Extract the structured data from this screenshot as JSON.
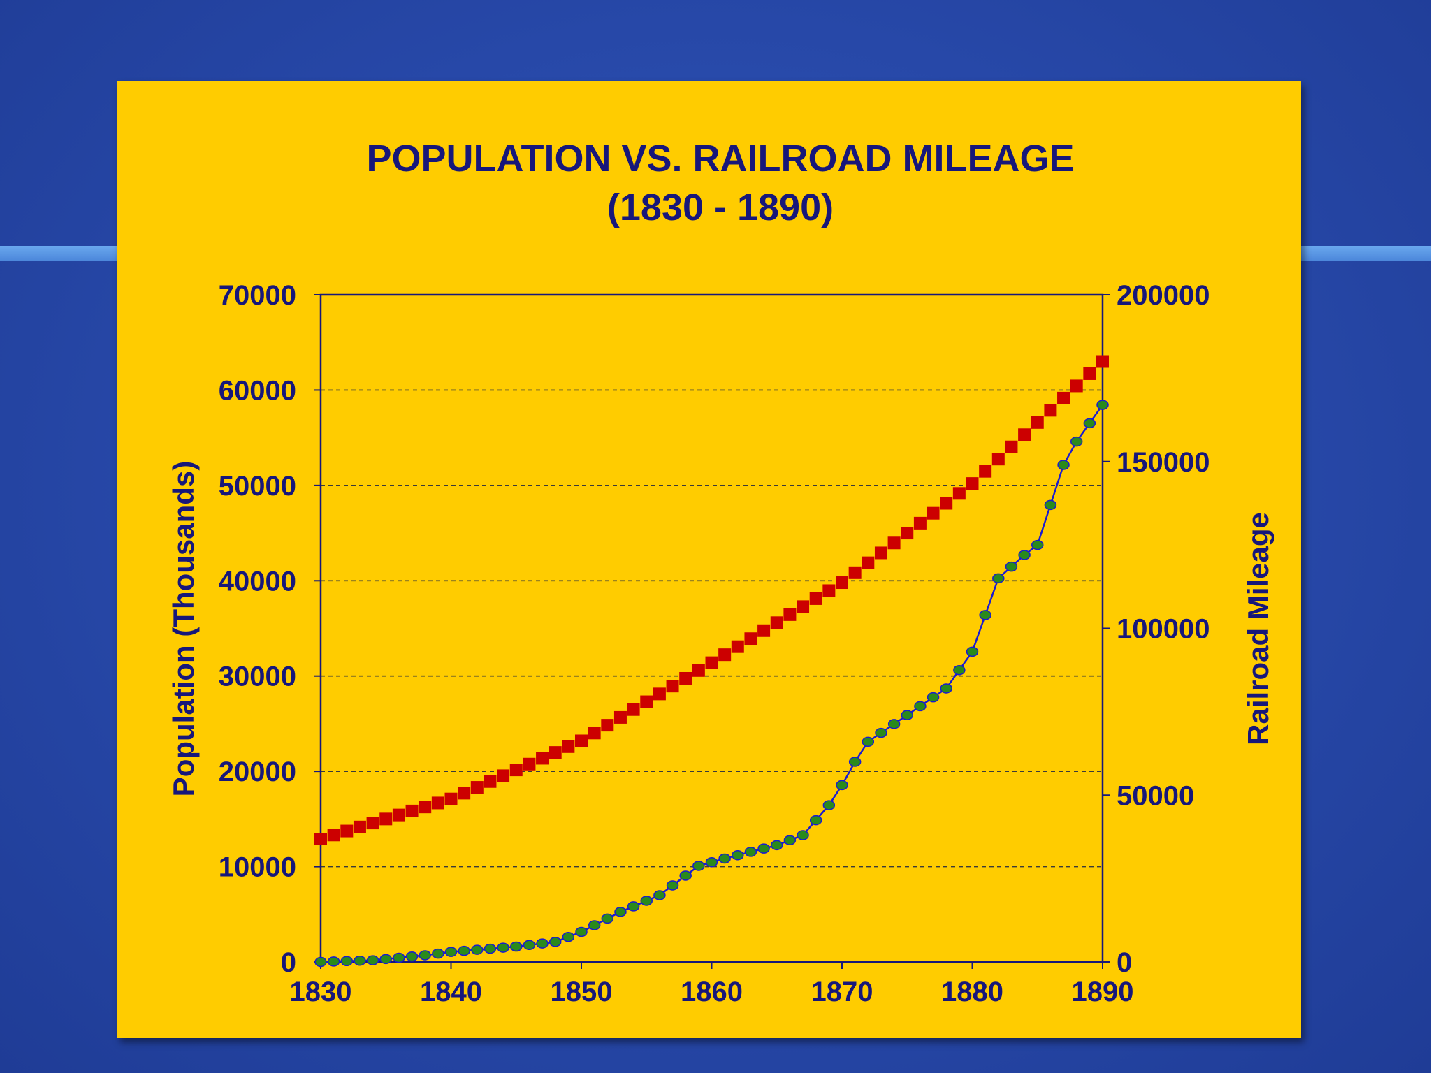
{
  "colors": {
    "background": "#2748a8",
    "panel": "#ffcc00",
    "text": "#17177a",
    "population_series": "#cc0000",
    "railroad_marker": "#2a8a1c",
    "railroad_line": "#1a1ad0"
  },
  "chart_data": {
    "type": "line",
    "title": "POPULATION VS. RAILROAD MILEAGE",
    "subtitle": "(1830 - 1890)",
    "xlabel": "",
    "ylabel_left": "Population (Thousands)",
    "ylabel_right": "Railroad Mileage",
    "xlim": [
      1830,
      1890
    ],
    "ylim_left": [
      0,
      70000
    ],
    "ylim_right": [
      0,
      200000
    ],
    "x_ticks": [
      "1830",
      "1840",
      "1850",
      "1860",
      "1870",
      "1880",
      "1890"
    ],
    "y_left_ticks": [
      "0",
      "10000",
      "20000",
      "30000",
      "40000",
      "50000",
      "60000",
      "70000"
    ],
    "y_right_ticks": [
      "0",
      "50000",
      "100000",
      "150000",
      "200000"
    ],
    "grid": "horizontal dashed",
    "legend": "none",
    "series": [
      {
        "axis": "left",
        "marker": "square",
        "anchors_x": [
          1830,
          1840,
          1850,
          1860,
          1870,
          1880,
          1890
        ],
        "anchors_y": [
          12900,
          17100,
          23200,
          31400,
          39800,
          50200,
          63000
        ]
      },
      {
        "axis": "right",
        "marker": "circle",
        "anchors_x": [
          1830,
          1834,
          1838,
          1840,
          1845,
          1848,
          1850,
          1853,
          1856,
          1859,
          1861,
          1865,
          1867,
          1869,
          1870,
          1871,
          1872,
          1875,
          1878,
          1880,
          1882,
          1884,
          1885,
          1886,
          1887,
          1888,
          1890
        ],
        "anchors_y": [
          0,
          500,
          2000,
          3000,
          4600,
          6000,
          9000,
          15000,
          20000,
          28800,
          31000,
          35000,
          38000,
          47000,
          53000,
          60000,
          66000,
          74000,
          82000,
          93000,
          115000,
          122000,
          125000,
          137000,
          149000,
          156000,
          167000
        ]
      }
    ]
  }
}
